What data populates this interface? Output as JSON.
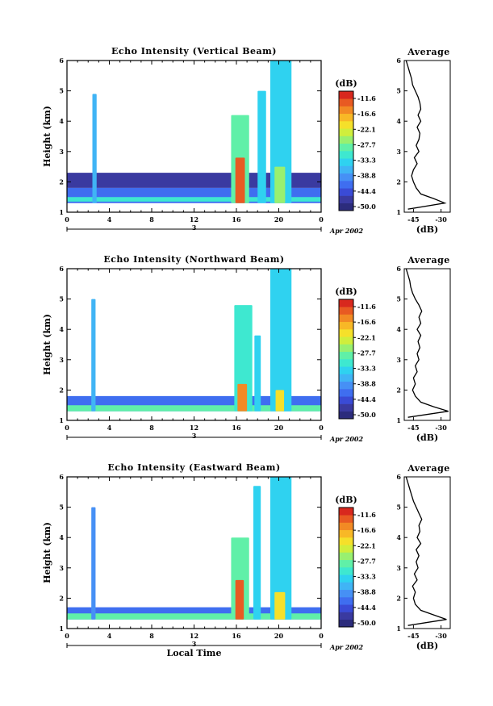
{
  "colors": {
    "scale": [
      "#2c2c7c",
      "#3a3aa0",
      "#3a4bd6",
      "#3f6ef0",
      "#4690f5",
      "#40b4f5",
      "#2fd2f0",
      "#3ee8d0",
      "#60f0a8",
      "#98f070",
      "#d0ee3c",
      "#f5e02a",
      "#f8b826",
      "#f28a24",
      "#e85a22",
      "#d8281e"
    ],
    "line": "#000000"
  },
  "panels": [
    {
      "title": "Echo Intensity (Vertical Beam)",
      "ylabel": "Height (km)",
      "date_label": "Apr 2002",
      "day_label": "3",
      "colorbar_unit": "(dB)",
      "avg_title": "Average",
      "avg_xlabel": "(dB)"
    },
    {
      "title": "Echo Intensity (Northward Beam)",
      "ylabel": "Height (km)",
      "date_label": "Apr 2002",
      "day_label": "3",
      "colorbar_unit": "(dB)",
      "avg_title": "Average",
      "avg_xlabel": "(dB)"
    },
    {
      "title": "Echo Intensity (Eastward Beam)",
      "ylabel": "Height (km)",
      "date_label": "Apr 2002",
      "day_label": "3",
      "colorbar_unit": "(dB)",
      "avg_title": "Average",
      "avg_xlabel": "(dB)",
      "xlabel": "Local Time"
    }
  ],
  "chart_data": [
    {
      "type": "heatmap",
      "title": "Echo Intensity (Vertical Beam)",
      "xlabel": "",
      "ylabel": "Height (km)",
      "x_ticks": [
        "0",
        "4",
        "8",
        "12",
        "16",
        "20",
        "0"
      ],
      "xlim": [
        0,
        24
      ],
      "y_ticks": [
        "1",
        "2",
        "3",
        "4",
        "5",
        "6"
      ],
      "ylim": [
        1,
        6
      ],
      "colorbar_ticks": [
        "-11.6",
        "-16.6",
        "-22.1",
        "-27.7",
        "-33.3",
        "-38.8",
        "-44.4",
        "-50.0"
      ],
      "colorbar_range": [
        -53,
        -9
      ],
      "regions": [
        {
          "desc": "boundary layer band",
          "t": [
            0,
            24
          ],
          "h": [
            1.3,
            1.8
          ],
          "dB": -44
        },
        {
          "desc": "surface strong echo",
          "t": [
            0,
            24
          ],
          "h": [
            1.35,
            1.5
          ],
          "dB": -33
        },
        {
          "desc": "upper weak band",
          "t": [
            0,
            24
          ],
          "h": [
            1.8,
            2.3
          ],
          "dB": -50
        },
        {
          "desc": "spike",
          "t": [
            2.4,
            2.8
          ],
          "h": [
            1.3,
            4.9
          ],
          "dB": -38
        },
        {
          "desc": "plume 1",
          "t": [
            15.5,
            17.2
          ],
          "h": [
            1.3,
            4.2
          ],
          "dB": -30
        },
        {
          "desc": "plume 1 core",
          "t": [
            15.9,
            16.8
          ],
          "h": [
            1.3,
            2.8
          ],
          "dB": -14
        },
        {
          "desc": "narrow column",
          "t": [
            18.0,
            18.8
          ],
          "h": [
            1.3,
            5.0
          ],
          "dB": -36
        },
        {
          "desc": "plume 2",
          "t": [
            19.2,
            21.2
          ],
          "h": [
            1.3,
            6.0
          ],
          "dB": -36
        },
        {
          "desc": "plume 2 core",
          "t": [
            19.6,
            20.6
          ],
          "h": [
            1.3,
            2.5
          ],
          "dB": -26
        }
      ],
      "average_profile": {
        "xlabel": "(dB)",
        "x_ticks": [
          "-45",
          "-30"
        ],
        "xlim": [
          -50,
          -25
        ],
        "ylim": [
          1,
          6
        ],
        "heights": [
          1.1,
          1.3,
          1.45,
          1.6,
          1.8,
          2.0,
          2.2,
          2.4,
          2.6,
          2.8,
          3.0,
          3.2,
          3.4,
          3.6,
          3.8,
          4.0,
          4.2,
          4.4,
          4.6,
          4.8,
          5.0,
          5.2,
          5.4,
          5.6,
          5.8,
          6.0
        ],
        "values": [
          -48,
          -28,
          -34,
          -41,
          -43.5,
          -45,
          -46,
          -45,
          -43,
          -44.5,
          -42,
          -43.5,
          -42,
          -41.5,
          -43,
          -41,
          -42.5,
          -41,
          -41.5,
          -42.5,
          -44,
          -45.5,
          -46,
          -47,
          -48,
          -49
        ]
      }
    },
    {
      "type": "heatmap",
      "title": "Echo Intensity (Northward Beam)",
      "xlabel": "",
      "ylabel": "Height (km)",
      "x_ticks": [
        "0",
        "4",
        "8",
        "12",
        "16",
        "20",
        "0"
      ],
      "xlim": [
        0,
        24
      ],
      "y_ticks": [
        "1",
        "2",
        "3",
        "4",
        "5",
        "6"
      ],
      "ylim": [
        1,
        6
      ],
      "colorbar_ticks": [
        "-11.6",
        "-16.6",
        "-22.1",
        "-27.7",
        "-33.3",
        "-38.8",
        "-44.4",
        "-50.0"
      ],
      "colorbar_range": [
        -53,
        -9
      ],
      "regions": [
        {
          "desc": "boundary layer band",
          "t": [
            0,
            24
          ],
          "h": [
            1.3,
            1.8
          ],
          "dB": -44
        },
        {
          "desc": "surface strong echo",
          "t": [
            0,
            24
          ],
          "h": [
            1.3,
            1.5
          ],
          "dB": -30
        },
        {
          "desc": "spike",
          "t": [
            2.3,
            2.7
          ],
          "h": [
            1.3,
            5.0
          ],
          "dB": -38
        },
        {
          "desc": "plume 1",
          "t": [
            15.8,
            17.5
          ],
          "h": [
            1.3,
            4.8
          ],
          "dB": -32
        },
        {
          "desc": "plume 1 core",
          "t": [
            16.1,
            17.0
          ],
          "h": [
            1.3,
            2.2
          ],
          "dB": -16
        },
        {
          "desc": "narrow column",
          "t": [
            17.7,
            18.3
          ],
          "h": [
            1.3,
            3.8
          ],
          "dB": -36
        },
        {
          "desc": "plume 2",
          "t": [
            19.2,
            21.2
          ],
          "h": [
            1.3,
            6.0
          ],
          "dB": -36
        },
        {
          "desc": "plume 2 core",
          "t": [
            19.7,
            20.5
          ],
          "h": [
            1.3,
            2.0
          ],
          "dB": -22
        }
      ],
      "average_profile": {
        "xlabel": "(dB)",
        "x_ticks": [
          "-45",
          "-30"
        ],
        "xlim": [
          -50,
          -25
        ],
        "ylim": [
          1,
          6
        ],
        "heights": [
          1.1,
          1.3,
          1.45,
          1.6,
          1.8,
          2.0,
          2.2,
          2.4,
          2.6,
          2.8,
          3.0,
          3.2,
          3.4,
          3.6,
          3.8,
          4.0,
          4.2,
          4.4,
          4.6,
          4.8,
          5.0,
          5.2,
          5.4,
          5.6,
          5.8,
          6.0
        ],
        "values": [
          -48,
          -26,
          -34,
          -41,
          -44,
          -45.5,
          -44,
          -45,
          -43,
          -44,
          -42,
          -43,
          -41.5,
          -42.5,
          -41,
          -43,
          -41,
          -42,
          -40.5,
          -42,
          -44,
          -45.5,
          -46.5,
          -47,
          -48,
          -49
        ]
      }
    },
    {
      "type": "heatmap",
      "title": "Echo Intensity (Eastward Beam)",
      "xlabel": "Local Time",
      "ylabel": "Height (km)",
      "x_ticks": [
        "0",
        "4",
        "8",
        "12",
        "16",
        "20",
        "0"
      ],
      "xlim": [
        0,
        24
      ],
      "y_ticks": [
        "1",
        "2",
        "3",
        "4",
        "5",
        "6"
      ],
      "ylim": [
        1,
        6
      ],
      "colorbar_ticks": [
        "-11.6",
        "-16.6",
        "-22.1",
        "-27.7",
        "-33.3",
        "-38.8",
        "-44.4",
        "-50.0"
      ],
      "colorbar_range": [
        -53,
        -9
      ],
      "regions": [
        {
          "desc": "boundary layer band",
          "t": [
            0,
            24
          ],
          "h": [
            1.3,
            1.7
          ],
          "dB": -44
        },
        {
          "desc": "surface strong echo",
          "t": [
            0,
            24
          ],
          "h": [
            1.3,
            1.5
          ],
          "dB": -30
        },
        {
          "desc": "spike",
          "t": [
            2.3,
            2.7
          ],
          "h": [
            1.3,
            5.0
          ],
          "dB": -40
        },
        {
          "desc": "plume 1",
          "t": [
            15.5,
            17.2
          ],
          "h": [
            1.3,
            4.0
          ],
          "dB": -30
        },
        {
          "desc": "plume 1 core",
          "t": [
            15.9,
            16.7
          ],
          "h": [
            1.3,
            2.6
          ],
          "dB": -13
        },
        {
          "desc": "narrow column",
          "t": [
            17.6,
            18.3
          ],
          "h": [
            1.3,
            5.7
          ],
          "dB": -36
        },
        {
          "desc": "plume 2",
          "t": [
            19.2,
            21.2
          ],
          "h": [
            1.3,
            6.0
          ],
          "dB": -36
        },
        {
          "desc": "plume 2 core",
          "t": [
            19.6,
            20.6
          ],
          "h": [
            1.3,
            2.2
          ],
          "dB": -22
        }
      ],
      "average_profile": {
        "xlabel": "(dB)",
        "x_ticks": [
          "-45",
          "-30"
        ],
        "xlim": [
          -50,
          -25
        ],
        "ylim": [
          1,
          6
        ],
        "heights": [
          1.1,
          1.3,
          1.45,
          1.6,
          1.8,
          2.0,
          2.2,
          2.4,
          2.6,
          2.8,
          3.0,
          3.2,
          3.4,
          3.6,
          3.8,
          4.0,
          4.2,
          4.4,
          4.6,
          4.8,
          5.0,
          5.2,
          5.4,
          5.6,
          5.8,
          6.0
        ],
        "values": [
          -48,
          -27,
          -34,
          -41,
          -44,
          -45,
          -44,
          -45.5,
          -43,
          -44.5,
          -42.5,
          -43.5,
          -42,
          -43.5,
          -41,
          -43,
          -41.5,
          -42,
          -40.5,
          -42,
          -43.5,
          -45,
          -46,
          -47,
          -48,
          -49
        ]
      }
    }
  ]
}
